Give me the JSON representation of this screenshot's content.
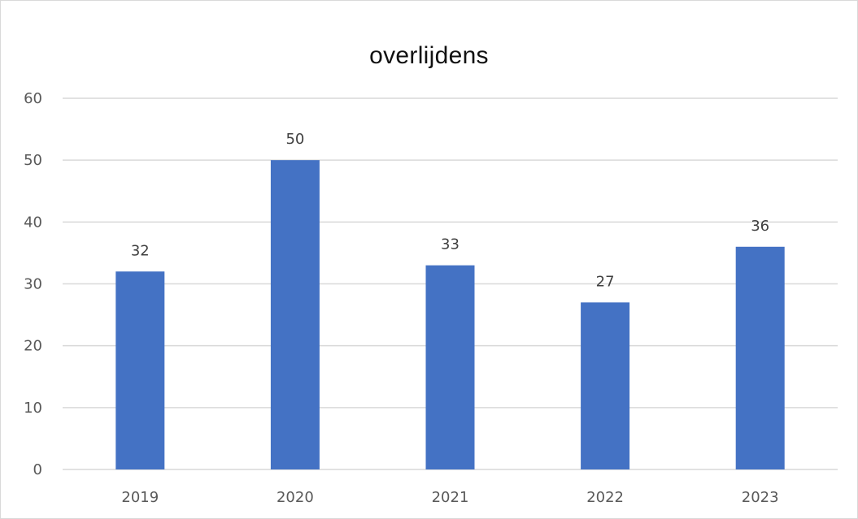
{
  "chart_data": {
    "type": "bar",
    "title": "overlijdens",
    "xlabel": "",
    "ylabel": "",
    "categories": [
      "2019",
      "2020",
      "2021",
      "2022",
      "2023"
    ],
    "values": [
      32,
      50,
      33,
      27,
      36
    ],
    "ylim": [
      0,
      60
    ],
    "yticks": [
      0,
      10,
      20,
      30,
      40,
      50,
      60
    ],
    "grid": true,
    "legend": "none",
    "data_labels": true,
    "colors": {
      "bar": "#4472C4",
      "grid": "#d9d9d9",
      "tick_text": "#595959",
      "label_text": "#404040"
    }
  }
}
